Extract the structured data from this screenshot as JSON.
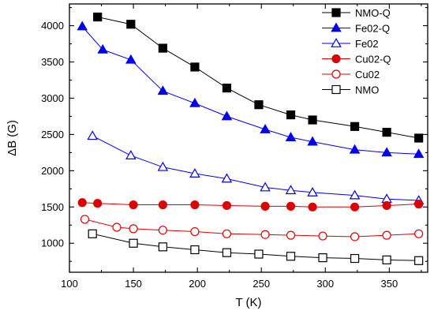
{
  "chart_data": {
    "type": "line",
    "xlabel": "T (K)",
    "ylabel": "ΔB (G)",
    "xlim": [
      100,
      380
    ],
    "ylim": [
      600,
      4300
    ],
    "xticks": [
      100,
      150,
      200,
      250,
      300,
      350
    ],
    "yticks": [
      1000,
      1500,
      2000,
      2500,
      3000,
      3500,
      4000
    ],
    "legend_position": "top-right",
    "series": [
      {
        "name": "NMO-Q",
        "marker": "square",
        "fill": "filled",
        "color": "#000000",
        "points": [
          [
            122,
            4120
          ],
          [
            148,
            4020
          ],
          [
            173,
            3690
          ],
          [
            198,
            3430
          ],
          [
            223,
            3140
          ],
          [
            248,
            2910
          ],
          [
            273,
            2770
          ],
          [
            290,
            2700
          ],
          [
            323,
            2610
          ],
          [
            348,
            2530
          ],
          [
            373,
            2450
          ]
        ]
      },
      {
        "name": "Fe02-Q",
        "marker": "triangle",
        "fill": "filled",
        "color": "#0000ee",
        "points": [
          [
            110,
            3990
          ],
          [
            126,
            3670
          ],
          [
            148,
            3530
          ],
          [
            173,
            3100
          ],
          [
            198,
            2930
          ],
          [
            223,
            2750
          ],
          [
            253,
            2570
          ],
          [
            273,
            2460
          ],
          [
            290,
            2400
          ],
          [
            323,
            2290
          ],
          [
            348,
            2250
          ],
          [
            373,
            2230
          ]
        ]
      },
      {
        "name": "Fe02",
        "marker": "triangle",
        "fill": "open",
        "color": "#0000ee",
        "points": [
          [
            118,
            2480
          ],
          [
            148,
            2210
          ],
          [
            173,
            2050
          ],
          [
            198,
            1960
          ],
          [
            223,
            1890
          ],
          [
            253,
            1770
          ],
          [
            273,
            1730
          ],
          [
            290,
            1700
          ],
          [
            323,
            1660
          ],
          [
            348,
            1610
          ],
          [
            373,
            1590
          ]
        ]
      },
      {
        "name": "Cu02-Q",
        "marker": "circle",
        "fill": "filled",
        "color": "#dd0000",
        "points": [
          [
            110,
            1560
          ],
          [
            122,
            1550
          ],
          [
            150,
            1530
          ],
          [
            173,
            1530
          ],
          [
            198,
            1530
          ],
          [
            223,
            1520
          ],
          [
            253,
            1510
          ],
          [
            273,
            1510
          ],
          [
            290,
            1500
          ],
          [
            323,
            1500
          ],
          [
            348,
            1520
          ],
          [
            373,
            1540
          ]
        ]
      },
      {
        "name": "Cu02",
        "marker": "circle",
        "fill": "open",
        "color": "#dd0000",
        "points": [
          [
            112,
            1330
          ],
          [
            137,
            1220
          ],
          [
            150,
            1200
          ],
          [
            173,
            1180
          ],
          [
            198,
            1160
          ],
          [
            223,
            1130
          ],
          [
            253,
            1120
          ],
          [
            273,
            1110
          ],
          [
            298,
            1100
          ],
          [
            323,
            1090
          ],
          [
            348,
            1110
          ],
          [
            373,
            1130
          ]
        ]
      },
      {
        "name": "NMO",
        "marker": "square",
        "fill": "open",
        "color": "#000000",
        "points": [
          [
            118,
            1130
          ],
          [
            150,
            1000
          ],
          [
            173,
            950
          ],
          [
            198,
            910
          ],
          [
            223,
            870
          ],
          [
            248,
            850
          ],
          [
            273,
            820
          ],
          [
            298,
            800
          ],
          [
            323,
            790
          ],
          [
            348,
            770
          ],
          [
            373,
            760
          ]
        ]
      }
    ]
  }
}
